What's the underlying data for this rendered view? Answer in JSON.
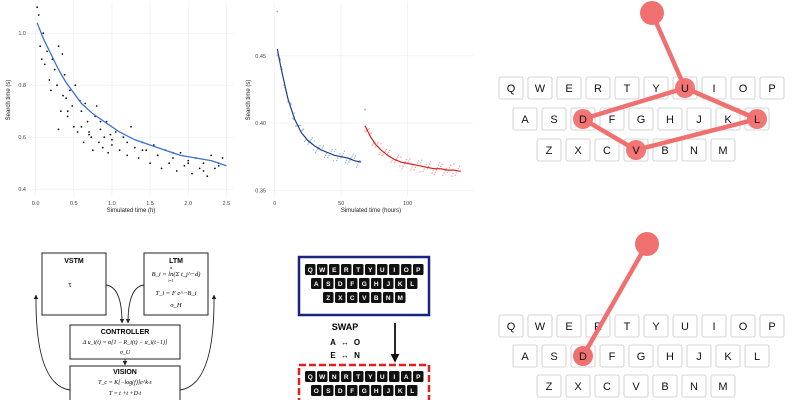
{
  "chart_data": [
    {
      "type": "scatter",
      "xlabel": "Simulated time (h)",
      "ylabel": "Search time (s)",
      "xlim": [
        -0.1,
        2.6
      ],
      "ylim": [
        0.37,
        1.12
      ],
      "x_ticks": [
        "0.0",
        "0.5",
        "1.0",
        "1.5",
        "2.0",
        "2.5"
      ],
      "x_tick_values": [
        0,
        0.5,
        1.0,
        1.5,
        2.0,
        2.5
      ],
      "y_ticks": [
        "0.4",
        "0.6",
        "0.8",
        "1.0"
      ],
      "y_tick_values": [
        0.4,
        0.6,
        0.8,
        1.0
      ],
      "grid": true,
      "fit_color": "#3a6fd8",
      "point_color": "#111111",
      "fit": {
        "x": [
          0.02,
          0.1,
          0.2,
          0.3,
          0.4,
          0.5,
          0.6,
          0.75,
          0.9,
          1.1,
          1.3,
          1.5,
          1.7,
          1.9,
          2.1,
          2.3,
          2.5
        ],
        "y": [
          1.04,
          0.98,
          0.92,
          0.86,
          0.81,
          0.77,
          0.73,
          0.69,
          0.66,
          0.62,
          0.59,
          0.57,
          0.55,
          0.53,
          0.52,
          0.51,
          0.49
        ]
      },
      "points": {
        "x": [
          0.02,
          0.04,
          0.06,
          0.08,
          0.1,
          0.12,
          0.15,
          0.18,
          0.2,
          0.22,
          0.25,
          0.28,
          0.3,
          0.33,
          0.35,
          0.38,
          0.4,
          0.42,
          0.45,
          0.48,
          0.5,
          0.52,
          0.55,
          0.58,
          0.6,
          0.63,
          0.65,
          0.68,
          0.7,
          0.73,
          0.75,
          0.78,
          0.8,
          0.83,
          0.85,
          0.88,
          0.9,
          0.93,
          0.95,
          0.98,
          1.0,
          1.05,
          1.1,
          1.15,
          1.2,
          1.25,
          1.3,
          1.35,
          1.4,
          1.45,
          1.5,
          1.55,
          1.6,
          1.65,
          1.7,
          1.75,
          1.8,
          1.85,
          1.9,
          1.95,
          2.0,
          2.05,
          2.1,
          2.15,
          2.2,
          2.25,
          2.3,
          2.35,
          2.4,
          2.45,
          0.3,
          0.36,
          0.42,
          0.6,
          0.7,
          0.85,
          1.0,
          1.2,
          1.4,
          1.6,
          1.8,
          2.0,
          2.2,
          2.4
        ],
        "y": [
          1.1,
          1.07,
          0.95,
          0.9,
          1.0,
          0.88,
          0.93,
          0.82,
          0.78,
          0.9,
          0.86,
          0.8,
          0.95,
          0.7,
          0.92,
          0.84,
          0.75,
          0.68,
          0.78,
          0.72,
          0.64,
          0.8,
          0.62,
          0.74,
          0.7,
          0.58,
          0.73,
          0.66,
          0.62,
          0.6,
          0.55,
          0.68,
          0.72,
          0.58,
          0.63,
          0.56,
          0.6,
          0.66,
          0.54,
          0.61,
          0.57,
          0.62,
          0.55,
          0.6,
          0.53,
          0.64,
          0.56,
          0.52,
          0.58,
          0.55,
          0.5,
          0.57,
          0.53,
          0.48,
          0.55,
          0.5,
          0.52,
          0.47,
          0.54,
          0.49,
          0.51,
          0.46,
          0.52,
          0.48,
          0.5,
          0.45,
          0.53,
          0.48,
          0.5,
          0.52,
          0.63,
          0.76,
          0.7,
          0.64,
          0.61,
          0.66,
          0.59,
          0.58,
          0.55,
          0.53,
          0.54,
          0.5,
          0.47,
          0.49
        ]
      }
    },
    {
      "type": "scatter",
      "xlabel": "Simulated time (hours)",
      "ylabel": "Search time (s)",
      "xlim": [
        -5,
        150
      ],
      "ylim": [
        0.345,
        0.49
      ],
      "x_ticks": [
        "0",
        "50",
        "100"
      ],
      "x_tick_values": [
        0,
        50,
        100
      ],
      "y_ticks": [
        "0.35",
        "0.40",
        "0.45"
      ],
      "y_tick_values": [
        0.35,
        0.4,
        0.45
      ],
      "grid": true,
      "series": [
        {
          "color": "#1f3f8a",
          "point_color": "#8fb3e0",
          "x": [
            2,
            5,
            10,
            15,
            20,
            25,
            30,
            35,
            40,
            45,
            50,
            55,
            60,
            65
          ],
          "y": [
            0.455,
            0.44,
            0.418,
            0.403,
            0.393,
            0.387,
            0.383,
            0.38,
            0.378,
            0.376,
            0.375,
            0.374,
            0.372,
            0.371
          ]
        },
        {
          "color": "#d62020",
          "point_color": "#f0a0a0",
          "x": [
            68,
            72,
            76,
            80,
            85,
            90,
            95,
            100,
            105,
            110,
            115,
            120,
            125,
            130,
            135,
            140
          ],
          "y": [
            0.398,
            0.39,
            0.384,
            0.38,
            0.376,
            0.373,
            0.371,
            0.37,
            0.369,
            0.368,
            0.367,
            0.366,
            0.366,
            0.365,
            0.365,
            0.364
          ]
        }
      ],
      "outliers": {
        "x": [
          2,
          68
        ],
        "y": [
          0.483,
          0.41
        ]
      }
    }
  ],
  "keyboard_top": {
    "rows": [
      [
        "Q",
        "W",
        "E",
        "R",
        "T",
        "Y",
        "U",
        "I",
        "O",
        "P"
      ],
      [
        "A",
        "S",
        "D",
        "F",
        "G",
        "H",
        "J",
        "K",
        "L"
      ],
      [
        "Z",
        "X",
        "C",
        "V",
        "B",
        "N",
        "M"
      ]
    ],
    "trace_color": "#f07070"
  },
  "keyboard_bottom": {
    "rows": [
      [
        "Q",
        "W",
        "E",
        "R",
        "T",
        "Y",
        "U",
        "I",
        "O",
        "P"
      ],
      [
        "A",
        "S",
        "D",
        "F",
        "G",
        "H",
        "J",
        "K",
        "L"
      ],
      [
        "Z",
        "X",
        "C",
        "V",
        "B",
        "N",
        "M"
      ]
    ],
    "trace_color": "#f07070"
  },
  "model": {
    "vstm": {
      "title": "VSTM",
      "param": "τ"
    },
    "ltm": {
      "title": "LTM",
      "eq1": "B_i = ln(Σ t_j^−d)",
      "eq1_sum": "n",
      "eq1_idx": "i=1",
      "eq2": "T_i = F e^−B_i",
      "eq3": "σ_H"
    },
    "controller": {
      "title": "CONTROLLER",
      "eq1": "Δ u_i(t) = α[1 − R_i(t) − u_i(t−1)]",
      "eq2": "σ_U"
    },
    "vision": {
      "title": "VISION",
      "eq1": "T_c = K[−log(f)]e^k·ε",
      "eq2": "T = t   +t   +D·t"
    }
  },
  "swap": {
    "top_rows": [
      [
        "Q",
        "W",
        "E",
        "R",
        "T",
        "Y",
        "U",
        "I",
        "O",
        "P"
      ],
      [
        "A",
        "S",
        "D",
        "F",
        "G",
        "H",
        "J",
        "K",
        "L"
      ],
      [
        "Z",
        "X",
        "C",
        "V",
        "B",
        "N",
        "M"
      ]
    ],
    "bottom_rows": [
      [
        "Q",
        "W",
        "N",
        "R",
        "T",
        "Y",
        "U",
        "I",
        "A",
        "P"
      ],
      [
        "O",
        "S",
        "D",
        "F",
        "G",
        "H",
        "J",
        "K",
        "L"
      ]
    ],
    "title": "SWAP",
    "rule1_left": "A",
    "rule1_arrow": "↔",
    "rule1_right": "O",
    "rule2_left": "E",
    "rule2_arrow": "↔",
    "rule2_right": "N",
    "top_border_color": "#1a237e",
    "bottom_border_color": "#e02020"
  }
}
